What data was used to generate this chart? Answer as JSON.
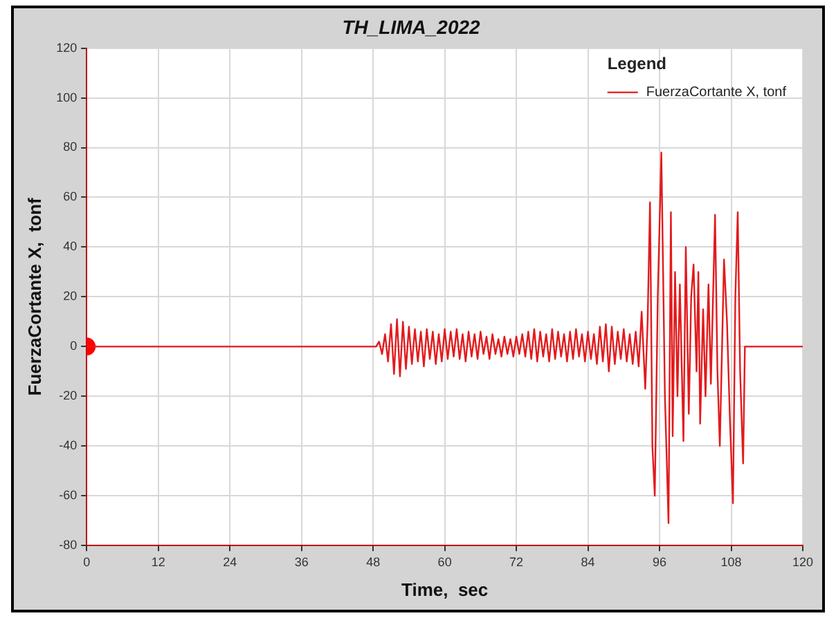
{
  "chart_data": {
    "type": "line",
    "title": "TH_LIMA_2022",
    "xlabel": "Time,  sec",
    "ylabel": "FuerzaCortante X,  tonf",
    "legend_title": "Legend",
    "legend": "top right",
    "grid": true,
    "marker": "none",
    "line_style": "solid",
    "xlim": [
      0,
      120
    ],
    "xticks": [
      0,
      12,
      24,
      36,
      48,
      60,
      72,
      84,
      96,
      108,
      120
    ],
    "ylim": [
      -80,
      120
    ],
    "yticks": [
      -80,
      -60,
      -40,
      -20,
      0,
      20,
      40,
      60,
      80,
      100,
      120
    ],
    "series": [
      {
        "name": "FuerzaCortante X, tonf",
        "color": "#e31a1c",
        "x": [
          0,
          48,
          48.5,
          49,
          49.5,
          50,
          50.5,
          51,
          51.5,
          52,
          52.5,
          53,
          53.5,
          54,
          54.5,
          55,
          55.5,
          56,
          56.5,
          57,
          57.5,
          58,
          58.5,
          59,
          59.5,
          60,
          60.5,
          61,
          61.5,
          62,
          62.5,
          63,
          63.5,
          64,
          64.5,
          65,
          65.5,
          66,
          66.5,
          67,
          67.5,
          68,
          68.5,
          69,
          69.5,
          70,
          70.5,
          71,
          71.5,
          72,
          72.5,
          73,
          73.5,
          74,
          74.5,
          75,
          75.5,
          76,
          76.5,
          77,
          77.5,
          78,
          78.5,
          79,
          79.5,
          80,
          80.5,
          81,
          81.5,
          82,
          82.5,
          83,
          83.5,
          84,
          84.5,
          85,
          85.5,
          86,
          86.5,
          87,
          87.5,
          88,
          88.5,
          89,
          89.5,
          90,
          90.5,
          91,
          91.5,
          92,
          92.5,
          93,
          93.6,
          94,
          94.4,
          94.8,
          95.2,
          95.7,
          96.3,
          96.9,
          97.5,
          97.9,
          98.2,
          98.6,
          99,
          99.4,
          100,
          100.4,
          100.9,
          101.3,
          101.7,
          102.2,
          102.5,
          102.8,
          103.3,
          103.7,
          104.2,
          104.6,
          105.3,
          105.7,
          106.1,
          106.8,
          107.3,
          107.8,
          108.3,
          108.7,
          109.1,
          109.5,
          110,
          110.3,
          120
        ],
        "values": [
          0,
          0,
          0,
          2,
          -3,
          5,
          -6,
          9,
          -11,
          11,
          -12,
          10,
          -9,
          8,
          -7,
          7,
          -6,
          6,
          -8,
          7,
          -5,
          6,
          -7,
          5,
          -6,
          7,
          -5,
          6,
          -4,
          7,
          -5,
          5,
          -6,
          6,
          -4,
          5,
          -5,
          6,
          -3,
          4,
          -5,
          5,
          -3,
          3,
          -4,
          4,
          -3,
          3,
          -4,
          4,
          -3,
          5,
          -4,
          6,
          -5,
          7,
          -6,
          6,
          -4,
          5,
          -6,
          7,
          -5,
          6,
          -4,
          5,
          -6,
          6,
          -5,
          7,
          -4,
          5,
          -6,
          6,
          -5,
          5,
          -7,
          8,
          -6,
          9,
          -10,
          8,
          -7,
          6,
          -5,
          7,
          -6,
          5,
          -7,
          6,
          -8,
          14,
          -17,
          10,
          58,
          -40,
          -60,
          20,
          78,
          -20,
          -71,
          54,
          -36,
          30,
          -20,
          25,
          -38,
          40,
          -27,
          20,
          33,
          -10,
          30,
          -31,
          15,
          -20,
          25,
          -15,
          53,
          -10,
          -40,
          35,
          10,
          -30,
          -63,
          20,
          54,
          -10,
          -47,
          0,
          0
        ]
      },
      {
        "type": "scatter",
        "marker": "circle",
        "color": "#ff0000",
        "x": [
          0
        ],
        "values": [
          0
        ]
      }
    ]
  }
}
